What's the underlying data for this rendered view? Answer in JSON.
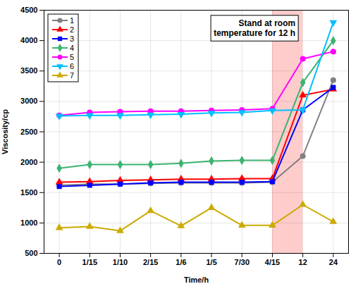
{
  "chart_data": {
    "type": "line",
    "categories": [
      "0",
      "1/15",
      "1/10",
      "2/15",
      "1/6",
      "1/5",
      "7/30",
      "4/15",
      "12",
      "24"
    ],
    "series": [
      {
        "name": "1",
        "color": "#808080",
        "marker": "circle",
        "values": [
          1620,
          1640,
          1640,
          1650,
          1660,
          1660,
          1660,
          1670,
          2100,
          3350
        ]
      },
      {
        "name": "2",
        "color": "#ff0000",
        "marker": "triangle",
        "values": [
          1670,
          1680,
          1700,
          1710,
          1720,
          1720,
          1730,
          1730,
          3100,
          3200
        ]
      },
      {
        "name": "3",
        "color": "#0000ff",
        "marker": "square",
        "values": [
          1600,
          1620,
          1640,
          1660,
          1670,
          1670,
          1670,
          1680,
          2860,
          3230
        ]
      },
      {
        "name": "4",
        "color": "#3cb371",
        "marker": "diamond",
        "values": [
          1900,
          1960,
          1960,
          1960,
          1980,
          2020,
          2030,
          2030,
          3310,
          4000
        ]
      },
      {
        "name": "5",
        "color": "#ff00ff",
        "marker": "circle",
        "values": [
          2770,
          2820,
          2830,
          2840,
          2840,
          2850,
          2860,
          2880,
          3700,
          3820
        ]
      },
      {
        "name": "6",
        "color": "#00bfff",
        "marker": "triangle-down",
        "values": [
          2760,
          2770,
          2770,
          2780,
          2790,
          2810,
          2820,
          2850,
          2860,
          4300
        ]
      },
      {
        "name": "7",
        "color": "#ccaa00",
        "marker": "triangle",
        "values": [
          920,
          940,
          870,
          1200,
          950,
          1250,
          960,
          960,
          1300,
          1020
        ]
      }
    ],
    "xlabel": "Time/h",
    "ylabel": "Viscosity/cp",
    "ylim": [
      500,
      4500
    ],
    "yticks": [
      500,
      1000,
      1500,
      2000,
      2500,
      3000,
      3500,
      4000,
      4500
    ],
    "grid": true,
    "legend": "upper left",
    "annotations": [
      {
        "text": "Stand at room\ntemperature for 12 h"
      }
    ],
    "shaded_region": {
      "from": "4/15",
      "to": "12",
      "color": "#ffcccc"
    }
  }
}
